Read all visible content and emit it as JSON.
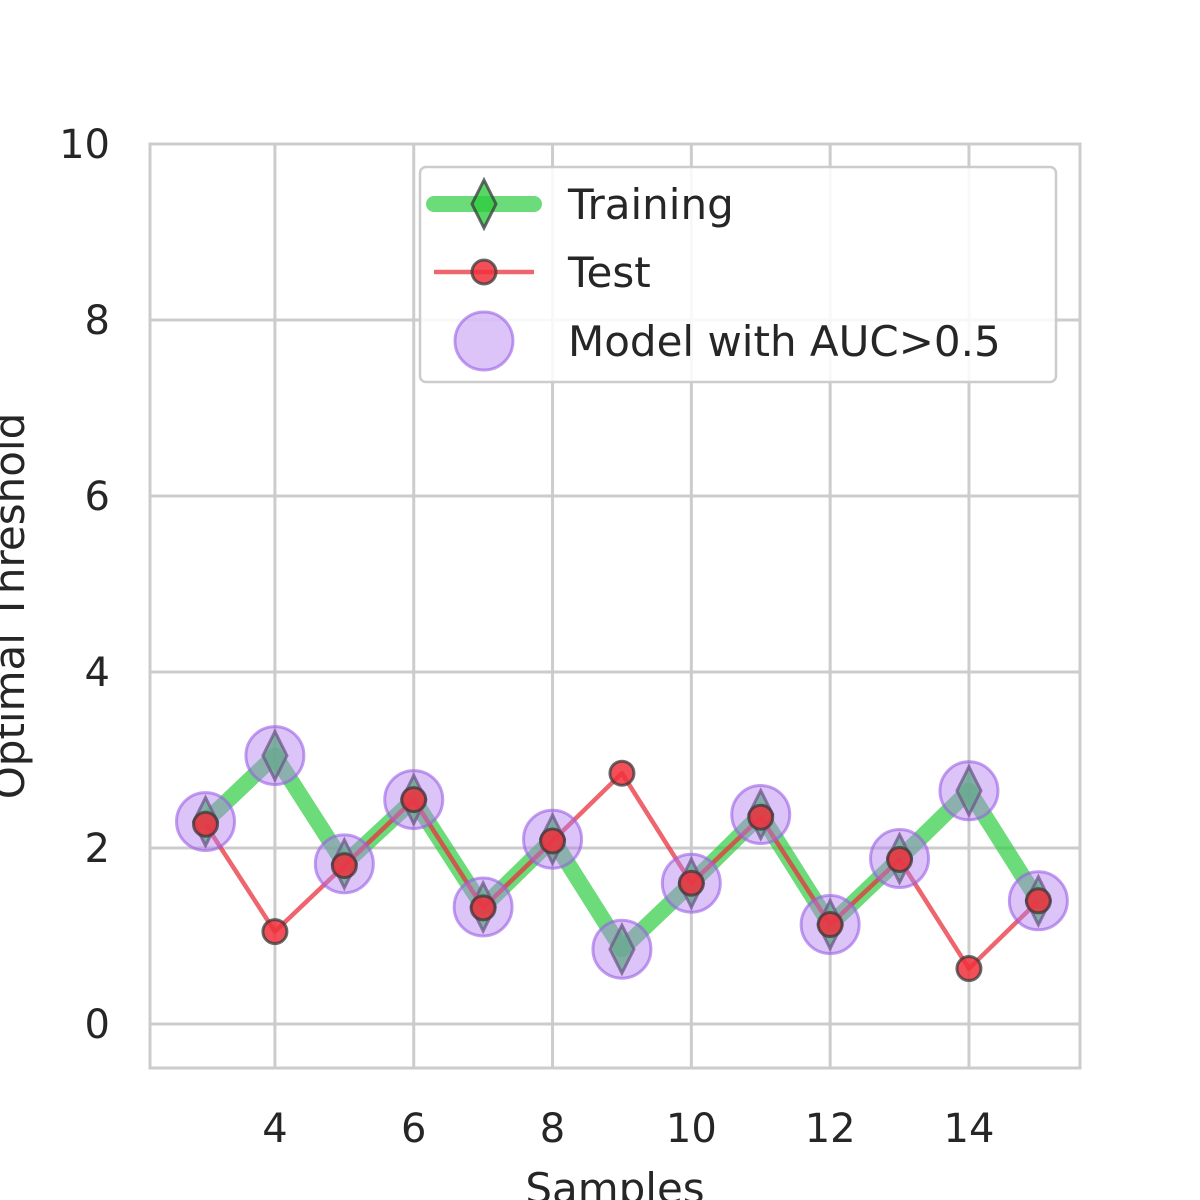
{
  "chart_data": {
    "type": "line",
    "xlabel": "Samples",
    "ylabel": "Optimal Threshold",
    "xlim": [
      2.2,
      15.6
    ],
    "ylim": [
      -0.5,
      10
    ],
    "xticks": [
      4,
      6,
      8,
      10,
      12,
      14
    ],
    "yticks": [
      0,
      2,
      4,
      6,
      8,
      10
    ],
    "grid": true,
    "legend_position": "top-right",
    "x": [
      3,
      4,
      5,
      6,
      7,
      8,
      9,
      10,
      11,
      12,
      13,
      14,
      15
    ],
    "series": [
      {
        "name": "Training",
        "marker": "diamond",
        "color": "#2ecc40",
        "values": [
          2.3,
          3.05,
          1.82,
          2.55,
          1.33,
          2.1,
          0.85,
          1.6,
          2.38,
          1.13,
          1.88,
          2.65,
          1.4
        ]
      },
      {
        "name": "Test",
        "marker": "circle",
        "color": "#e8323e",
        "values": [
          2.27,
          1.05,
          1.8,
          2.55,
          1.32,
          2.08,
          2.85,
          1.6,
          2.35,
          1.13,
          1.87,
          0.63,
          1.4
        ]
      },
      {
        "name": "Model with AUC>0.5",
        "marker": "large-circle",
        "color": "#b27cf0",
        "values": [
          2.3,
          3.05,
          1.82,
          2.55,
          1.33,
          2.1,
          0.85,
          1.6,
          2.38,
          1.13,
          1.88,
          2.65,
          1.4
        ]
      }
    ]
  }
}
